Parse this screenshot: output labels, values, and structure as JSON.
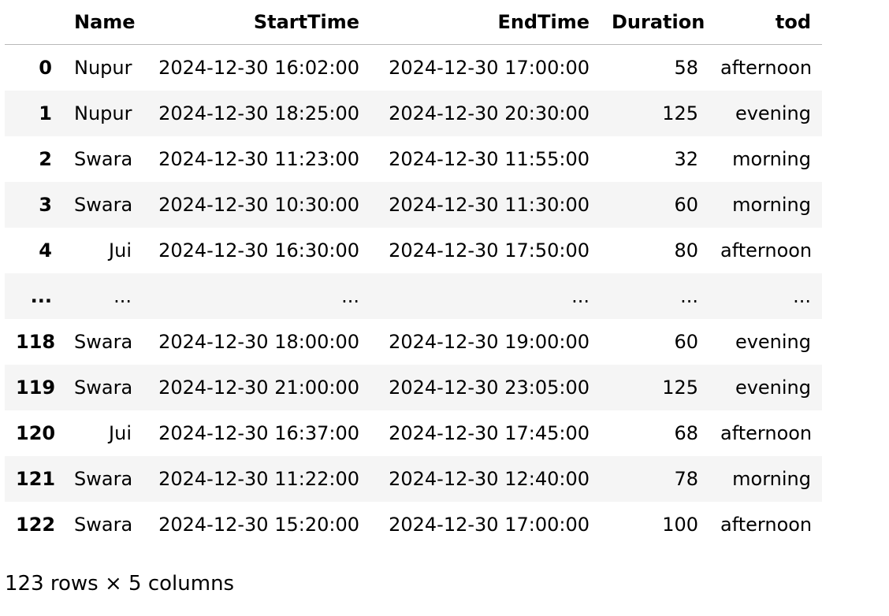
{
  "table": {
    "columns": [
      "",
      "Name",
      "StartTime",
      "EndTime",
      "Duration",
      "tod"
    ],
    "rows": [
      {
        "index": "0",
        "Name": "Nupur",
        "StartTime": "2024-12-30 16:02:00",
        "EndTime": "2024-12-30 17:00:00",
        "Duration": "58",
        "tod": "afternoon"
      },
      {
        "index": "1",
        "Name": "Nupur",
        "StartTime": "2024-12-30 18:25:00",
        "EndTime": "2024-12-30 20:30:00",
        "Duration": "125",
        "tod": "evening"
      },
      {
        "index": "2",
        "Name": "Swara",
        "StartTime": "2024-12-30 11:23:00",
        "EndTime": "2024-12-30 11:55:00",
        "Duration": "32",
        "tod": "morning"
      },
      {
        "index": "3",
        "Name": "Swara",
        "StartTime": "2024-12-30 10:30:00",
        "EndTime": "2024-12-30 11:30:00",
        "Duration": "60",
        "tod": "morning"
      },
      {
        "index": "4",
        "Name": "Jui",
        "StartTime": "2024-12-30 16:30:00",
        "EndTime": "2024-12-30 17:50:00",
        "Duration": "80",
        "tod": "afternoon"
      },
      {
        "index": "...",
        "Name": "...",
        "StartTime": "...",
        "EndTime": "...",
        "Duration": "...",
        "tod": "..."
      },
      {
        "index": "118",
        "Name": "Swara",
        "StartTime": "2024-12-30 18:00:00",
        "EndTime": "2024-12-30 19:00:00",
        "Duration": "60",
        "tod": "evening"
      },
      {
        "index": "119",
        "Name": "Swara",
        "StartTime": "2024-12-30 21:00:00",
        "EndTime": "2024-12-30 23:05:00",
        "Duration": "125",
        "tod": "evening"
      },
      {
        "index": "120",
        "Name": "Jui",
        "StartTime": "2024-12-30 16:37:00",
        "EndTime": "2024-12-30 17:45:00",
        "Duration": "68",
        "tod": "afternoon"
      },
      {
        "index": "121",
        "Name": "Swara",
        "StartTime": "2024-12-30 11:22:00",
        "EndTime": "2024-12-30 12:40:00",
        "Duration": "78",
        "tod": "morning"
      },
      {
        "index": "122",
        "Name": "Swara",
        "StartTime": "2024-12-30 15:20:00",
        "EndTime": "2024-12-30 17:00:00",
        "Duration": "100",
        "tod": "afternoon"
      }
    ]
  },
  "shape_text": "123 rows × 5 columns",
  "colors": {
    "stripe": "#f5f5f5",
    "header_rule": "#b8b8b8",
    "text": "#000000",
    "background": "#ffffff"
  }
}
